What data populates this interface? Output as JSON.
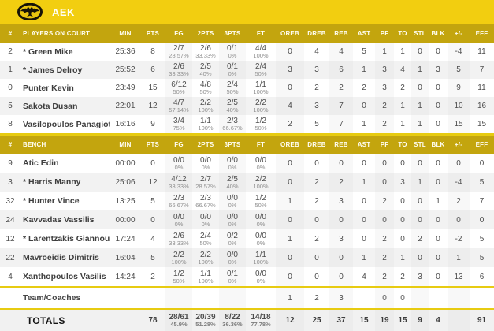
{
  "team": {
    "name": "AEK"
  },
  "colors": {
    "brand_yellow": "#F2CE10",
    "header_olive": "#C3A50E",
    "separator": "#E7CB11",
    "row_alt": "#F2F2F2"
  },
  "table": {
    "columns": [
      "#",
      "PLAYERS ON COURT",
      "MIN",
      "PTS",
      "FG",
      "2PTS",
      "3PTS",
      "FT",
      "OREB",
      "DREB",
      "REB",
      "AST",
      "PF",
      "TO",
      "STL",
      "BLK",
      "+/-",
      "EFF"
    ],
    "bench_label": "BENCH",
    "on_court": [
      {
        "num": "2",
        "name": "* Green Mike",
        "min": "25:36",
        "pts": "8",
        "fg": {
          "v": "2/7",
          "p": "28.57%"
        },
        "p2": {
          "v": "2/6",
          "p": "33.33%"
        },
        "p3": {
          "v": "0/1",
          "p": "0%"
        },
        "ft": {
          "v": "4/4",
          "p": "100%"
        },
        "oreb": "0",
        "dreb": "4",
        "reb": "4",
        "ast": "5",
        "pf": "1",
        "to": "1",
        "stl": "0",
        "blk": "0",
        "pm": "-4",
        "eff": "11"
      },
      {
        "num": "1",
        "name": "* James Delroy",
        "min": "25:52",
        "pts": "6",
        "fg": {
          "v": "2/6",
          "p": "33.33%"
        },
        "p2": {
          "v": "2/5",
          "p": "40%"
        },
        "p3": {
          "v": "0/1",
          "p": "0%"
        },
        "ft": {
          "v": "2/4",
          "p": "50%"
        },
        "oreb": "3",
        "dreb": "3",
        "reb": "6",
        "ast": "1",
        "pf": "3",
        "to": "4",
        "stl": "1",
        "blk": "3",
        "pm": "5",
        "eff": "7"
      },
      {
        "num": "0",
        "name": "Punter Kevin",
        "min": "23:49",
        "pts": "15",
        "fg": {
          "v": "6/12",
          "p": "50%"
        },
        "p2": {
          "v": "4/8",
          "p": "50%"
        },
        "p3": {
          "v": "2/4",
          "p": "50%"
        },
        "ft": {
          "v": "1/1",
          "p": "100%"
        },
        "oreb": "0",
        "dreb": "2",
        "reb": "2",
        "ast": "2",
        "pf": "3",
        "to": "2",
        "stl": "0",
        "blk": "0",
        "pm": "9",
        "eff": "11"
      },
      {
        "num": "5",
        "name": "Sakota Dusan",
        "min": "22:01",
        "pts": "12",
        "fg": {
          "v": "4/7",
          "p": "57.14%"
        },
        "p2": {
          "v": "2/2",
          "p": "100%"
        },
        "p3": {
          "v": "2/5",
          "p": "40%"
        },
        "ft": {
          "v": "2/2",
          "p": "100%"
        },
        "oreb": "4",
        "dreb": "3",
        "reb": "7",
        "ast": "0",
        "pf": "2",
        "to": "1",
        "stl": "1",
        "blk": "0",
        "pm": "10",
        "eff": "16"
      },
      {
        "num": "8",
        "name": "Vasilopoulos Panagiotis",
        "min": "16:16",
        "pts": "9",
        "fg": {
          "v": "3/4",
          "p": "75%"
        },
        "p2": {
          "v": "1/1",
          "p": "100%"
        },
        "p3": {
          "v": "2/3",
          "p": "66.67%"
        },
        "ft": {
          "v": "1/2",
          "p": "50%"
        },
        "oreb": "2",
        "dreb": "5",
        "reb": "7",
        "ast": "1",
        "pf": "2",
        "to": "1",
        "stl": "1",
        "blk": "0",
        "pm": "15",
        "eff": "15"
      }
    ],
    "bench": [
      {
        "num": "9",
        "name": "Atic Edin",
        "min": "00:00",
        "pts": "0",
        "fg": {
          "v": "0/0",
          "p": "0%"
        },
        "p2": {
          "v": "0/0",
          "p": "0%"
        },
        "p3": {
          "v": "0/0",
          "p": "0%"
        },
        "ft": {
          "v": "0/0",
          "p": "0%"
        },
        "oreb": "0",
        "dreb": "0",
        "reb": "0",
        "ast": "0",
        "pf": "0",
        "to": "0",
        "stl": "0",
        "blk": "0",
        "pm": "0",
        "eff": "0"
      },
      {
        "num": "3",
        "name": "* Harris Manny",
        "min": "25:06",
        "pts": "12",
        "fg": {
          "v": "4/12",
          "p": "33.33%"
        },
        "p2": {
          "v": "2/7",
          "p": "28.57%"
        },
        "p3": {
          "v": "2/5",
          "p": "40%"
        },
        "ft": {
          "v": "2/2",
          "p": "100%"
        },
        "oreb": "0",
        "dreb": "2",
        "reb": "2",
        "ast": "1",
        "pf": "0",
        "to": "3",
        "stl": "1",
        "blk": "0",
        "pm": "-4",
        "eff": "5"
      },
      {
        "num": "32",
        "name": "* Hunter Vince",
        "min": "13:25",
        "pts": "5",
        "fg": {
          "v": "2/3",
          "p": "66.67%"
        },
        "p2": {
          "v": "2/3",
          "p": "66.67%"
        },
        "p3": {
          "v": "0/0",
          "p": "0%"
        },
        "ft": {
          "v": "1/2",
          "p": "50%"
        },
        "oreb": "1",
        "dreb": "2",
        "reb": "3",
        "ast": "0",
        "pf": "2",
        "to": "0",
        "stl": "0",
        "blk": "1",
        "pm": "2",
        "eff": "7"
      },
      {
        "num": "24",
        "name": "Kavvadas Vassilis",
        "min": "00:00",
        "pts": "0",
        "fg": {
          "v": "0/0",
          "p": "0%"
        },
        "p2": {
          "v": "0/0",
          "p": "0%"
        },
        "p3": {
          "v": "0/0",
          "p": "0%"
        },
        "ft": {
          "v": "0/0",
          "p": "0%"
        },
        "oreb": "0",
        "dreb": "0",
        "reb": "0",
        "ast": "0",
        "pf": "0",
        "to": "0",
        "stl": "0",
        "blk": "0",
        "pm": "0",
        "eff": "0"
      },
      {
        "num": "12",
        "name": "* Larentzakis Giannoulis",
        "min": "17:24",
        "pts": "4",
        "fg": {
          "v": "2/6",
          "p": "33.33%"
        },
        "p2": {
          "v": "2/4",
          "p": "50%"
        },
        "p3": {
          "v": "0/2",
          "p": "0%"
        },
        "ft": {
          "v": "0/0",
          "p": "0%"
        },
        "oreb": "1",
        "dreb": "2",
        "reb": "3",
        "ast": "0",
        "pf": "2",
        "to": "0",
        "stl": "2",
        "blk": "0",
        "pm": "-2",
        "eff": "5"
      },
      {
        "num": "22",
        "name": "Mavroeidis Dimitris",
        "min": "16:04",
        "pts": "5",
        "fg": {
          "v": "2/2",
          "p": "100%"
        },
        "p2": {
          "v": "2/2",
          "p": "100%"
        },
        "p3": {
          "v": "0/0",
          "p": "0%"
        },
        "ft": {
          "v": "1/1",
          "p": "100%"
        },
        "oreb": "0",
        "dreb": "0",
        "reb": "0",
        "ast": "1",
        "pf": "2",
        "to": "1",
        "stl": "0",
        "blk": "0",
        "pm": "1",
        "eff": "5"
      },
      {
        "num": "4",
        "name": "Xanthopoulos Vasilis",
        "min": "14:24",
        "pts": "2",
        "fg": {
          "v": "1/2",
          "p": "50%"
        },
        "p2": {
          "v": "1/1",
          "p": "100%"
        },
        "p3": {
          "v": "0/1",
          "p": "0%"
        },
        "ft": {
          "v": "0/0",
          "p": "0%"
        },
        "oreb": "0",
        "dreb": "0",
        "reb": "0",
        "ast": "4",
        "pf": "2",
        "to": "2",
        "stl": "3",
        "blk": "0",
        "pm": "13",
        "eff": "6"
      }
    ],
    "team_row": {
      "num": "",
      "name": "Team/Coaches",
      "min": "",
      "pts": "",
      "oreb": "1",
      "dreb": "2",
      "reb": "3",
      "ast": "",
      "pf": "0",
      "to": "0",
      "stl": "",
      "blk": "",
      "pm": "",
      "eff": ""
    },
    "totals": {
      "num": "",
      "name": "TOTALS",
      "min": "",
      "pts": "78",
      "fg": {
        "v": "28/61",
        "p": "45.9%"
      },
      "p2": {
        "v": "20/39",
        "p": "51.28%"
      },
      "p3": {
        "v": "8/22",
        "p": "36.36%"
      },
      "ft": {
        "v": "14/18",
        "p": "77.78%"
      },
      "oreb": "12",
      "dreb": "25",
      "reb": "37",
      "ast": "15",
      "pf": "19",
      "to": "15",
      "stl": "9",
      "blk": "4",
      "pm": "",
      "eff": "91"
    }
  }
}
